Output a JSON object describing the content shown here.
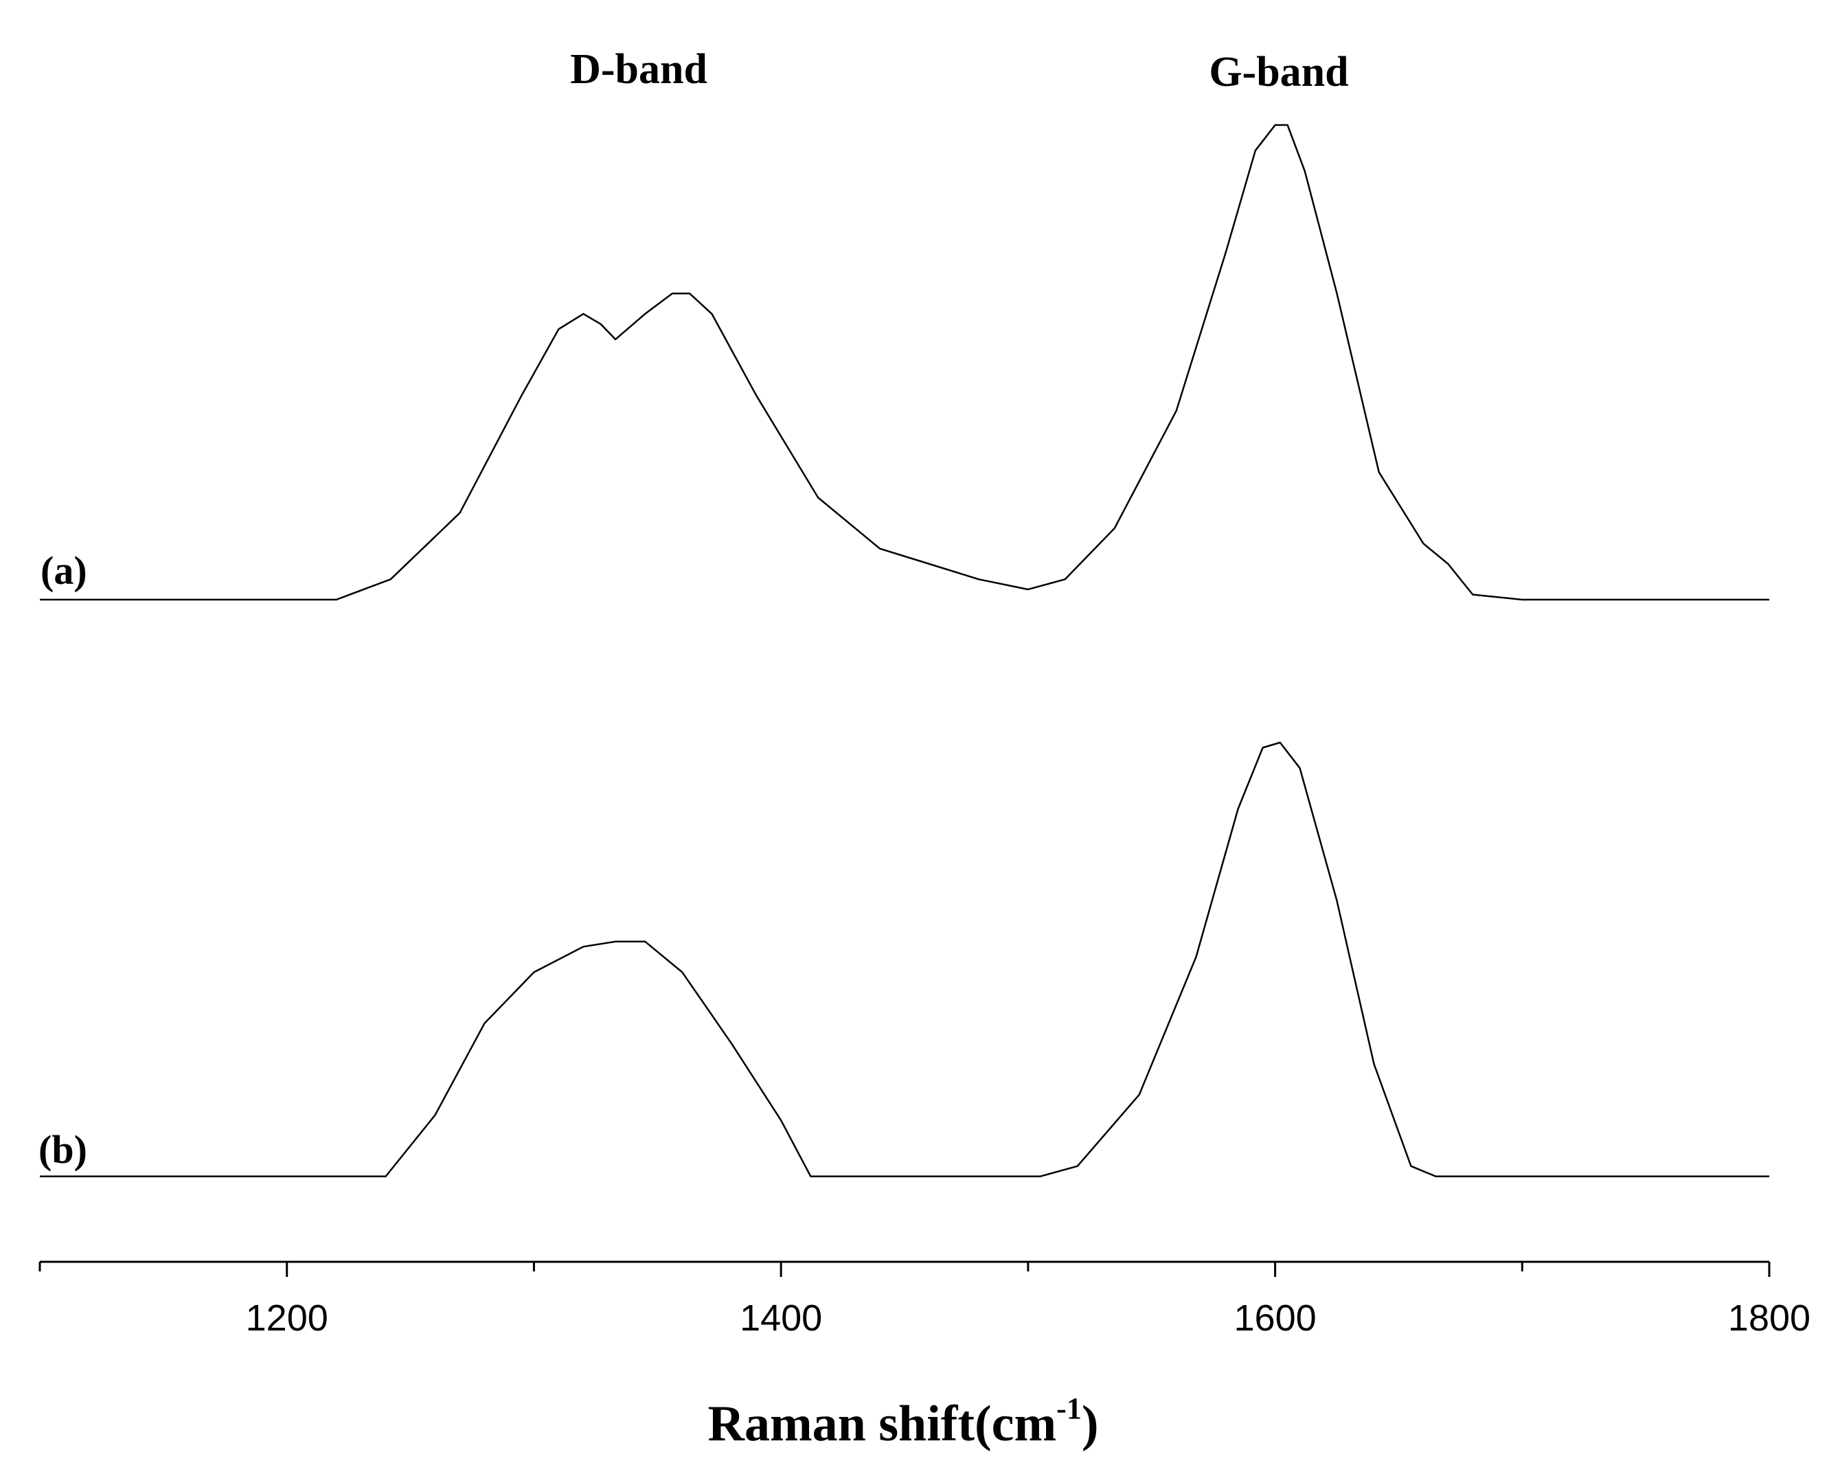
{
  "chart_data": {
    "type": "line",
    "title": "",
    "xlabel_main": "Raman shift(cm",
    "xlabel_sup": "-1",
    "xlabel_close": ")",
    "ylabel": "",
    "xlim": [
      1100,
      1800
    ],
    "xticks_major": [
      1200,
      1400,
      1600,
      1800
    ],
    "xticks_minor": [
      1100,
      1300,
      1500,
      1700
    ],
    "annotations": [
      {
        "id": "d-band",
        "text": "D-band",
        "x": 1340
      },
      {
        "id": "g-band",
        "text": "G-band",
        "x": 1603
      }
    ],
    "series": [
      {
        "name": "(a)",
        "label": "(a)",
        "offset": 0,
        "points": [
          [
            1100,
            0.0
          ],
          [
            1130,
            0.0
          ],
          [
            1160,
            0.0
          ],
          [
            1190,
            0.0
          ],
          [
            1220,
            0.0
          ],
          [
            1242,
            0.04
          ],
          [
            1270,
            0.17
          ],
          [
            1295,
            0.4
          ],
          [
            1310,
            0.53
          ],
          [
            1320,
            0.56
          ],
          [
            1327,
            0.54
          ],
          [
            1333,
            0.51
          ],
          [
            1345,
            0.56
          ],
          [
            1356,
            0.6
          ],
          [
            1363,
            0.6
          ],
          [
            1372,
            0.56
          ],
          [
            1390,
            0.4
          ],
          [
            1415,
            0.2
          ],
          [
            1440,
            0.1
          ],
          [
            1460,
            0.07
          ],
          [
            1480,
            0.04
          ],
          [
            1500,
            0.02
          ],
          [
            1515,
            0.04
          ],
          [
            1535,
            0.14
          ],
          [
            1560,
            0.37
          ],
          [
            1580,
            0.68
          ],
          [
            1592,
            0.88
          ],
          [
            1600,
            0.93
          ],
          [
            1605,
            0.93
          ],
          [
            1612,
            0.84
          ],
          [
            1625,
            0.6
          ],
          [
            1642,
            0.25
          ],
          [
            1660,
            0.11
          ],
          [
            1670,
            0.07
          ],
          [
            1680,
            0.01
          ],
          [
            1700,
            0.0
          ],
          [
            1730,
            0.0
          ],
          [
            1760,
            0.0
          ],
          [
            1800,
            0.0
          ]
        ]
      },
      {
        "name": "(b)",
        "label": "(b)",
        "offset": -1.13,
        "points": [
          [
            1100,
            0.0
          ],
          [
            1130,
            0.0
          ],
          [
            1160,
            0.0
          ],
          [
            1190,
            0.0
          ],
          [
            1220,
            0.0
          ],
          [
            1240,
            0.0
          ],
          [
            1260,
            0.12
          ],
          [
            1280,
            0.3
          ],
          [
            1300,
            0.4
          ],
          [
            1320,
            0.45
          ],
          [
            1333,
            0.46
          ],
          [
            1345,
            0.46
          ],
          [
            1360,
            0.4
          ],
          [
            1380,
            0.26
          ],
          [
            1400,
            0.11
          ],
          [
            1412,
            0.0
          ],
          [
            1430,
            0.0
          ],
          [
            1460,
            0.0
          ],
          [
            1480,
            0.0
          ],
          [
            1505,
            0.0
          ],
          [
            1520,
            0.02
          ],
          [
            1545,
            0.16
          ],
          [
            1568,
            0.43
          ],
          [
            1585,
            0.72
          ],
          [
            1595,
            0.84
          ],
          [
            1602,
            0.85
          ],
          [
            1610,
            0.8
          ],
          [
            1625,
            0.54
          ],
          [
            1640,
            0.22
          ],
          [
            1655,
            0.02
          ],
          [
            1665,
            0.0
          ],
          [
            1700,
            0.0
          ],
          [
            1730,
            0.0
          ],
          [
            1760,
            0.0
          ],
          [
            1800,
            0.0
          ]
        ]
      }
    ]
  }
}
